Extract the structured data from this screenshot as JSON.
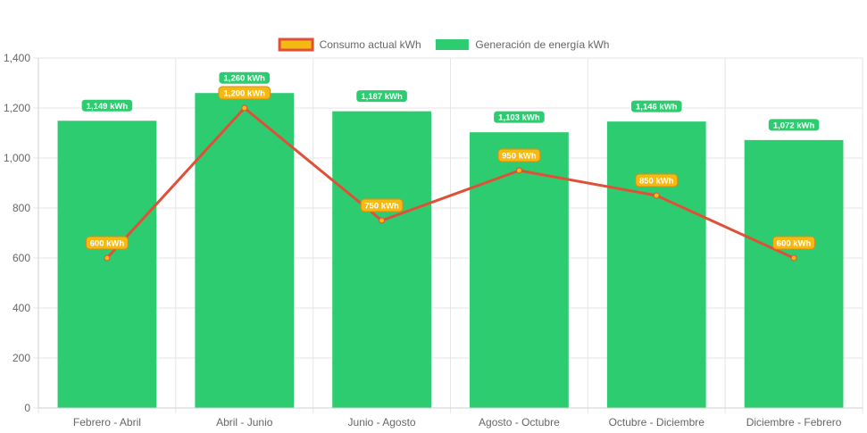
{
  "chart_data": {
    "type": "bar",
    "categories": [
      "Febrero - Abril",
      "Abril - Junio",
      "Junio - Agosto",
      "Agosto - Octubre",
      "Octubre - Diciembre",
      "Diciembre - Febrero"
    ],
    "series": [
      {
        "name": "Consumo actual kWh",
        "type": "line",
        "values": [
          600,
          1200,
          750,
          950,
          850,
          600
        ],
        "labels": [
          "600 kWh",
          "1,200 kWh",
          "750 kWh",
          "950 kWh",
          "850 kWh",
          "600 kWh"
        ],
        "line_color": "#e05038",
        "point_color": "#f5b914",
        "label_bg": "#f5b914",
        "label_border": "#e08a10"
      },
      {
        "name": "Generación de energía kWh",
        "type": "bar",
        "values": [
          1149,
          1260,
          1187,
          1103,
          1146,
          1072
        ],
        "labels": [
          "1,149 kWh",
          "1,260 kWh",
          "1,187 kWh",
          "1,103 kWh",
          "1,146 kWh",
          "1,072 kWh"
        ],
        "color": "#2ecc71",
        "label_bg": "#2ecc71",
        "label_border": "#ffffff"
      }
    ],
    "y_ticks": [
      "0",
      "200",
      "400",
      "600",
      "800",
      "1,000",
      "1,200",
      "1,400"
    ],
    "ylim": [
      0,
      1400
    ],
    "grid": true,
    "legend_position": "top-center",
    "title": "",
    "xlabel": "",
    "ylabel": ""
  }
}
